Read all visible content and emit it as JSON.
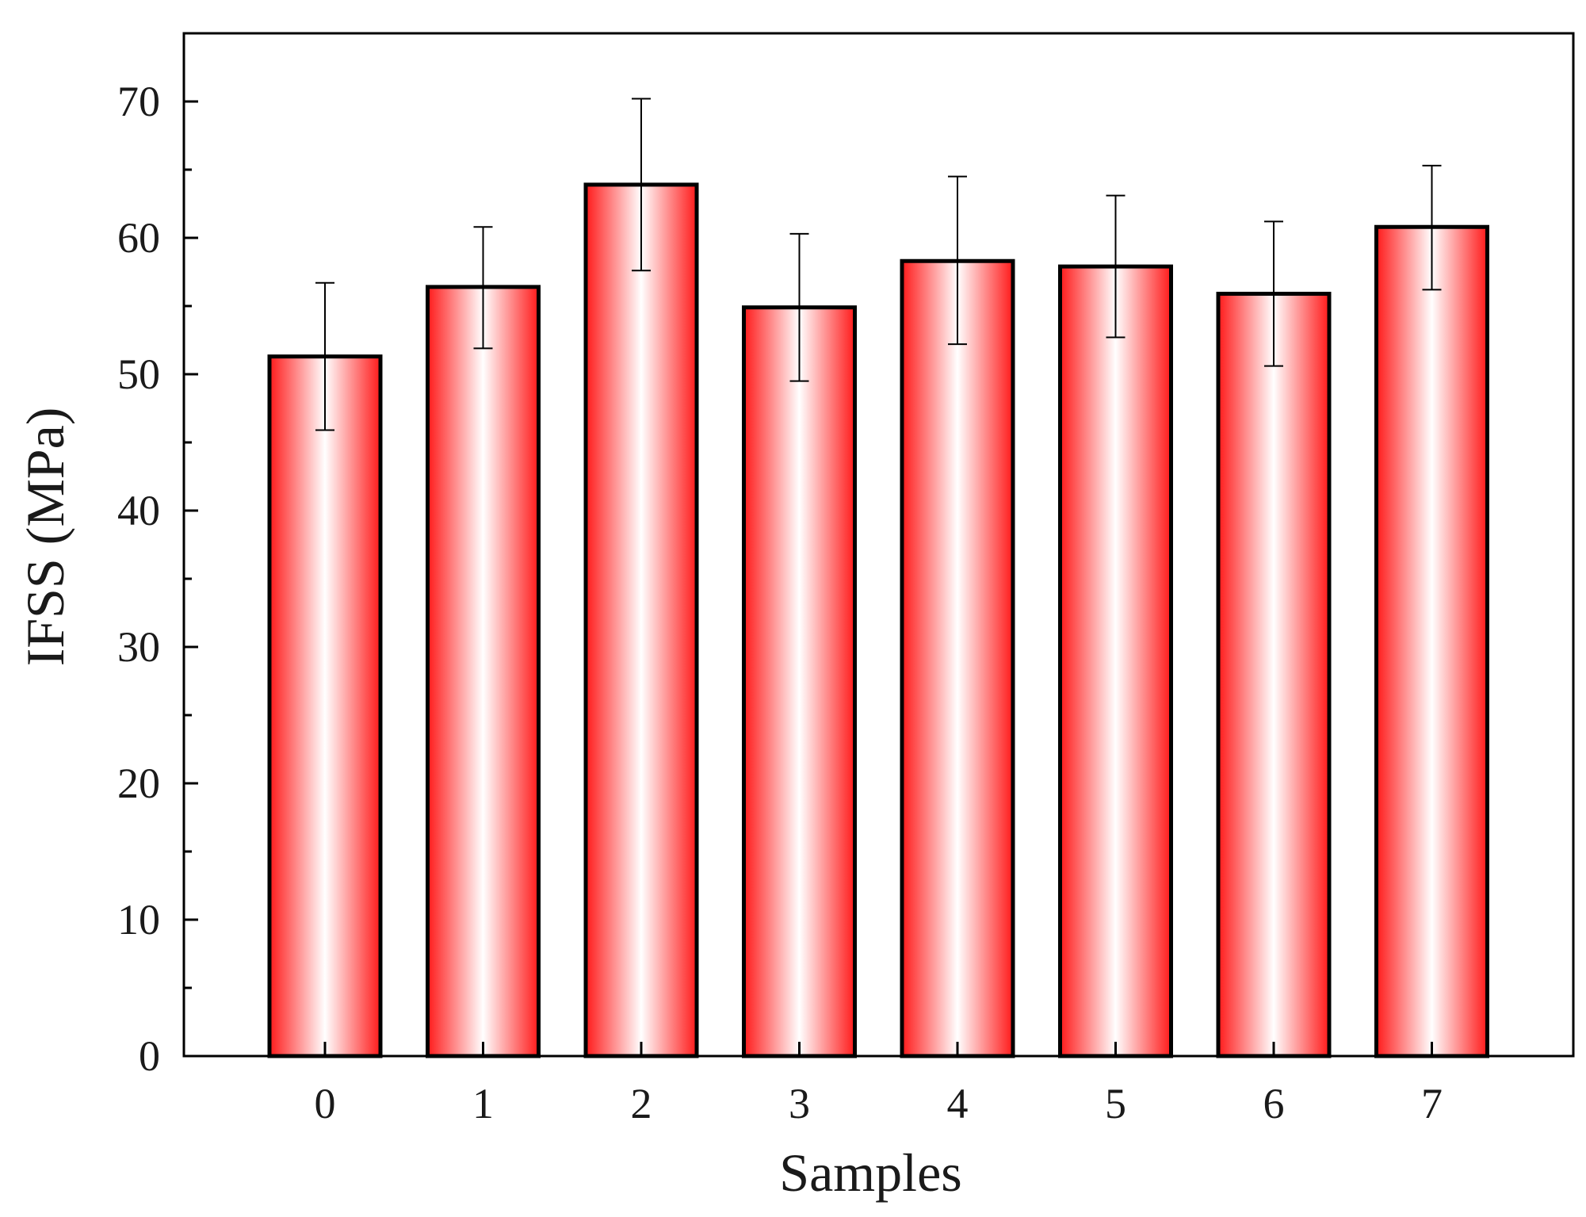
{
  "chart_data": {
    "type": "bar",
    "title": "",
    "xlabel": "Samples",
    "ylabel": "IFSS (MPa)",
    "categories": [
      "0",
      "1",
      "2",
      "3",
      "4",
      "5",
      "6",
      "7"
    ],
    "values": [
      51.3,
      56.4,
      63.9,
      54.9,
      58.3,
      57.9,
      55.9,
      60.8
    ],
    "error_low": [
      45.9,
      51.9,
      57.6,
      49.5,
      52.2,
      52.7,
      50.6,
      56.2
    ],
    "error_high": [
      56.7,
      60.8,
      70.2,
      60.3,
      64.5,
      63.1,
      61.2,
      65.3
    ],
    "ylim": [
      0,
      75
    ],
    "yticks": [
      0,
      10,
      20,
      30,
      40,
      50,
      60,
      70
    ],
    "ytick_labels": [
      "0",
      "10",
      "20",
      "30",
      "40",
      "50",
      "60",
      "70"
    ],
    "grid": false,
    "legend": "none",
    "colors": {
      "bar_edge": "#ff1a1a",
      "bar_center": "#ffffff",
      "bar_outline": "#000000",
      "axis": "#000000"
    }
  }
}
